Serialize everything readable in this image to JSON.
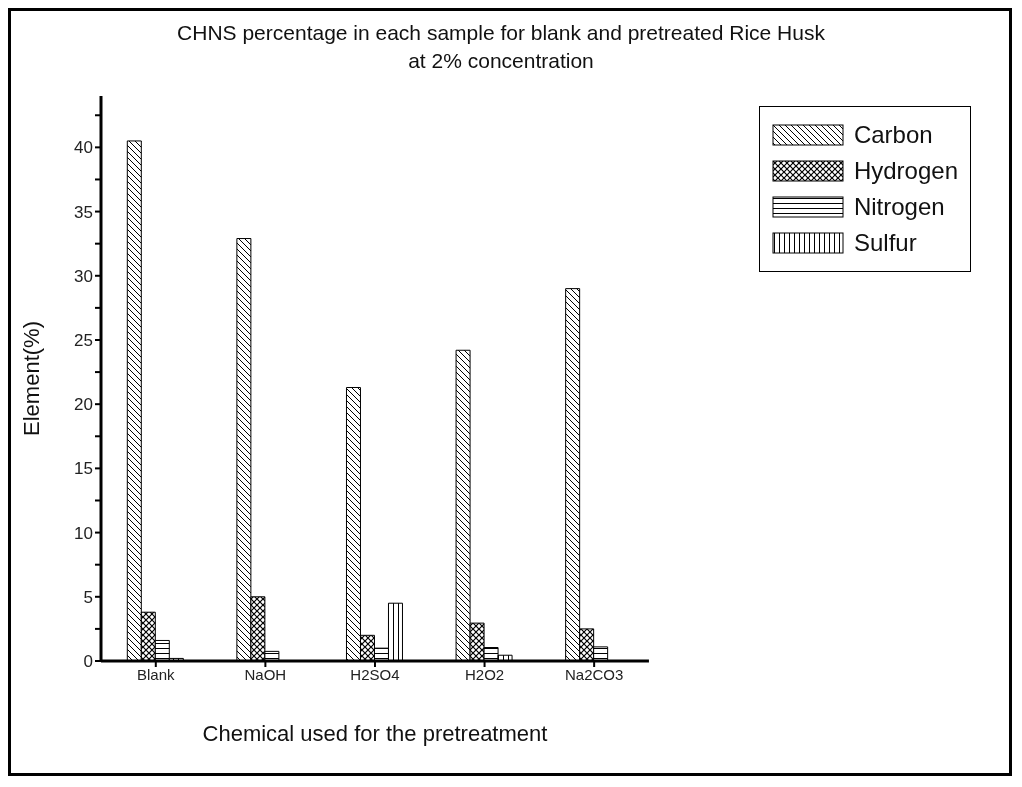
{
  "chart_data": {
    "type": "bar",
    "title": "CHNS percentage  in each sample for blank and pretreated Rice Husk\nat 2% concentration",
    "xlabel": "Chemical used  for the pretreatment",
    "ylabel": "Element(%)",
    "categories": [
      "Blank",
      "NaOH",
      "H2SO4",
      "H2O2",
      "Na2CO3"
    ],
    "series": [
      {
        "name": "Carbon",
        "color": "#000000",
        "values": [
          40.5,
          32.9,
          21.3,
          24.2,
          29.0
        ]
      },
      {
        "name": "Hydrogen",
        "color": "#000000",
        "values": [
          3.8,
          5.0,
          2.0,
          2.95,
          2.5
        ]
      },
      {
        "name": "Nitrogen",
        "color": "#000000",
        "values": [
          1.6,
          0.75,
          1.0,
          1.05,
          1.1
        ]
      },
      {
        "name": "Sulfur",
        "color": "#000000",
        "values": [
          0.2,
          null,
          4.5,
          0.45,
          null
        ]
      }
    ],
    "ylim": [
      0,
      44
    ],
    "yticks": [
      0,
      {
        "value": 2.5,
        "label": null
      },
      5,
      {
        "value": 7.5,
        "label": null
      },
      10,
      {
        "value": 12.5,
        "label": null
      },
      15,
      {
        "value": 17.5,
        "label": null
      },
      20,
      {
        "value": 22.5,
        "label": null
      },
      25,
      {
        "value": 27.5,
        "label": null
      },
      30,
      {
        "value": 32.5,
        "label": null
      },
      35,
      {
        "value": 37.5,
        "label": null
      },
      40,
      {
        "value": 42.5,
        "label": null
      }
    ],
    "grid": false,
    "legend": "top right"
  }
}
